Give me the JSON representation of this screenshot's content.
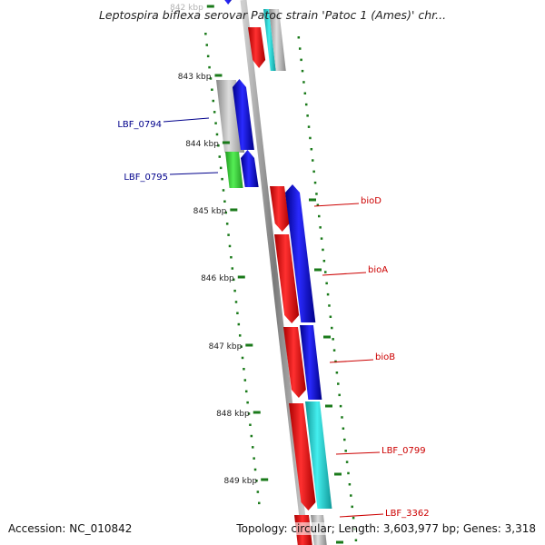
{
  "title": "Leptospira biflexa serovar Patoc strain 'Patoc 1 (Ames)' chr...",
  "footer": {
    "accession": "Accession: NC_010842",
    "summary": "Topology: circular; Length: 3,603,977 bp; Genes: 3,318"
  },
  "colors": {
    "backbone": "#8a8a8a",
    "tick": "#1a7a1a",
    "forward_label": "#cc0000",
    "reverse_label": "#00008b",
    "blue": "#0000ee",
    "red": "#ee0000",
    "cyan": "#22cccc",
    "green": "#33cc33",
    "gray": "#a8a8a8"
  },
  "scale_labels": [
    "842 kbp",
    "843 kbp",
    "844 kbp",
    "845 kbp",
    "846 kbp",
    "847 kbp",
    "848 kbp",
    "849 kbp"
  ],
  "gene_labels": [
    {
      "text": "LBF_0794",
      "strand": "reverse"
    },
    {
      "text": "LBF_0795",
      "strand": "reverse"
    },
    {
      "text": "bioD",
      "strand": "forward"
    },
    {
      "text": "bioA",
      "strand": "forward"
    },
    {
      "text": "bioB",
      "strand": "forward"
    },
    {
      "text": "LBF_0799",
      "strand": "forward"
    },
    {
      "text": "LBF_3362",
      "strand": "forward"
    }
  ]
}
